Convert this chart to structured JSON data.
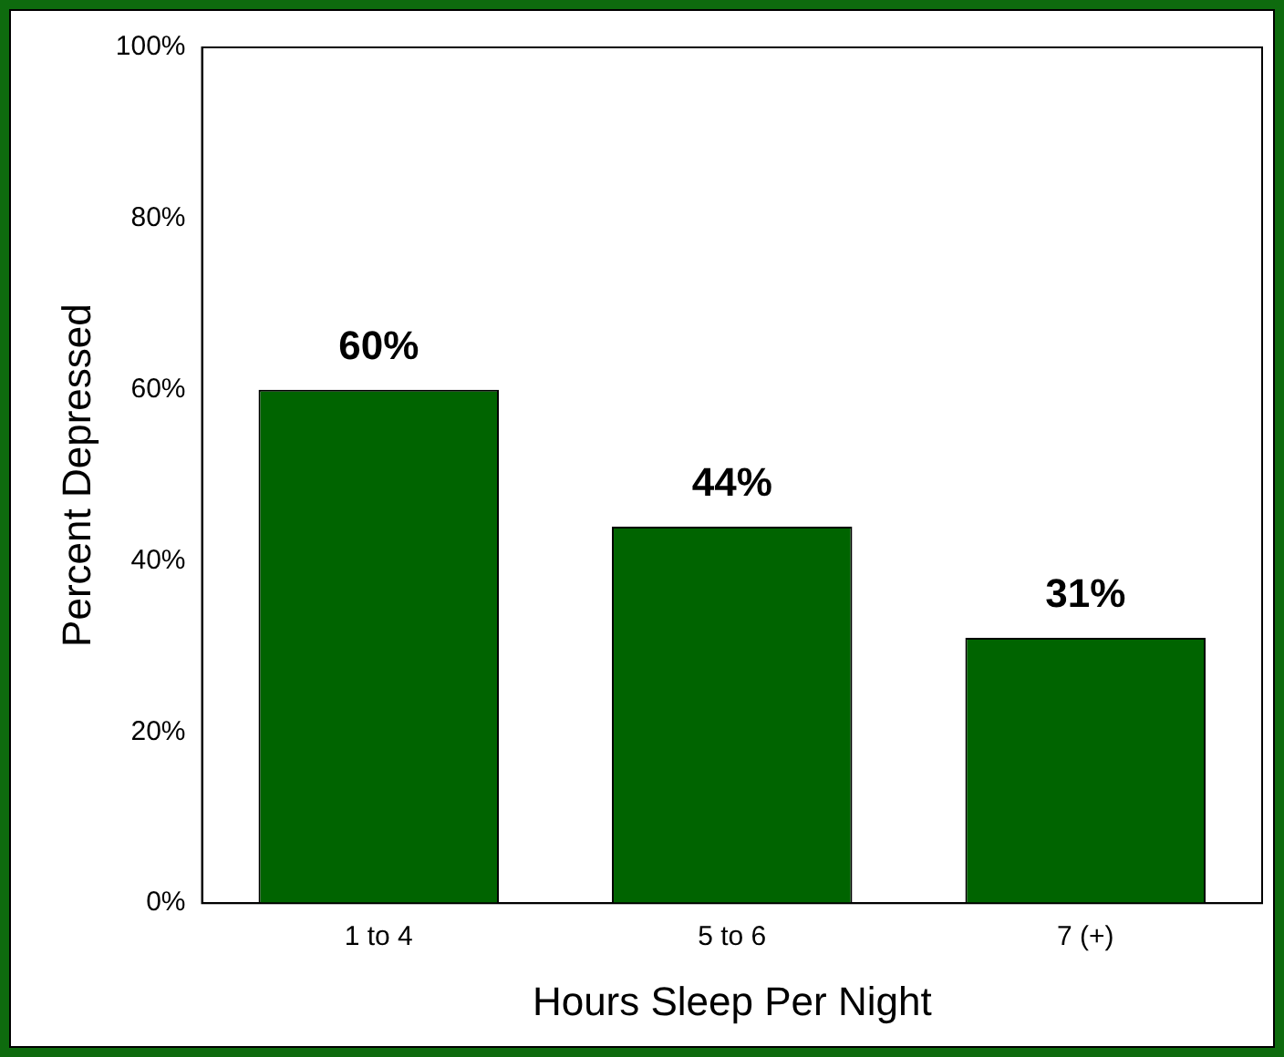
{
  "chart_data": {
    "type": "bar",
    "xlabel": "Hours Sleep Per Night",
    "ylabel": "Percent Depressed",
    "categories": [
      "1 to 4",
      "5 to 6",
      "7 (+)"
    ],
    "values": [
      60,
      44,
      31
    ],
    "value_labels": [
      "60%",
      "44%",
      "31%"
    ],
    "color": "#006400",
    "ylim": [
      0,
      100
    ],
    "yticks": [
      {
        "value": 0,
        "label": "0%"
      },
      {
        "value": 20,
        "label": "20%"
      },
      {
        "value": 40,
        "label": "40%"
      },
      {
        "value": 60,
        "label": "60%"
      },
      {
        "value": 80,
        "label": "80%"
      },
      {
        "value": 100,
        "label": "100%"
      }
    ],
    "grid": false,
    "legend": false
  }
}
